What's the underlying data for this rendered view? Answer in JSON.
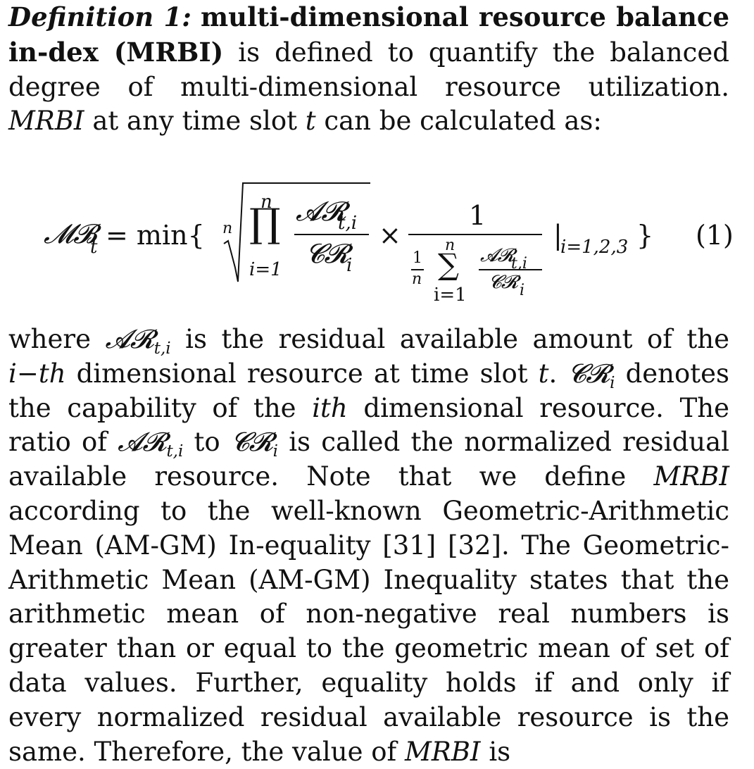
{
  "definition": {
    "label": "Definition 1:",
    "term": "multi-dimensional resource balance in-dex (MRBI)",
    "text_before_em": " is defined to quantify the balanced degree of multi-dimensional resource utilization. ",
    "em_mrbi": "MRBI",
    "text_mid": " at any time slot ",
    "em_t": "t",
    "text_end": " can be calculated as:"
  },
  "equation": {
    "lhs_symbol": "𝓜𝓑",
    "lhs_sub": "t",
    "equals_min": "= min{",
    "root_index": "n",
    "prod_upper": "n",
    "prod_symbol": "∏",
    "prod_lower": "i=1",
    "frac1_num": "𝓐𝓡",
    "frac1_num_sub": "t,i",
    "frac1_den": "𝓒𝓡",
    "frac1_den_sub": "i",
    "times": "×",
    "frac2_num": "1",
    "inner_one": "1",
    "inner_n": "n",
    "sum_upper": "n",
    "sum_symbol": "∑",
    "sum_lower": "i=1",
    "inner_num": "𝓐𝓡",
    "inner_num_sub": "t,i",
    "inner_den": "𝓒𝓡",
    "inner_den_sub": "i",
    "cond_bar": "|",
    "cond": "i=1,2,3",
    "close_brace": "}",
    "number": "(1)"
  },
  "body": {
    "s1": "where ",
    "ar": "𝓐𝓡",
    "ar_sub": "t,i",
    "s2": " is the residual available amount of the ",
    "ith_dash": "i−th",
    "s3": " dimensional resource at time slot ",
    "t": "t",
    "s4": ". ",
    "cr": "𝓒𝓡",
    "cr_sub": "i",
    "s5": " denotes the capability of the ",
    "ith": "ith",
    "s6": " dimensional resource. The ratio of ",
    "ar2": "𝓐𝓡",
    "ar2_sub": "t,i",
    "s7": " to ",
    "cr2": "𝓒𝓡",
    "cr2_sub": "i",
    "s8": " is called the normalized residual available resource. Note that we define ",
    "mrbi1": "MRBI",
    "s9": " according to the well-known Geometric-Arithmetic Mean (AM-GM) In-equality [31] [32]. The Geometric-Arithmetic Mean (AM-GM) Inequality states that the arithmetic mean of non-negative real numbers is greater than or equal to the geometric mean of set of data values. Further, equality holds if and only if every normalized residual available resource is the same. Therefore, the value of ",
    "mrbi2": "MRBI",
    "s10": "  is"
  }
}
